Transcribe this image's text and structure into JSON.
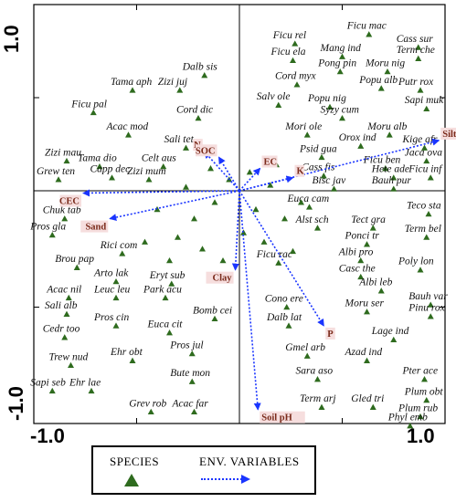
{
  "chart_data": {
    "type": "scatter",
    "xlim": [
      -1.0,
      1.0
    ],
    "ylim": [
      -1.0,
      1.0
    ],
    "ticks": {
      "x": [
        "-1.0",
        "1.0"
      ],
      "y": [
        "1.0",
        "-1.0"
      ]
    },
    "legend": {
      "species_label": "SPECIES",
      "env_label": "ENV. VARIABLES",
      "placement": "bottom"
    },
    "colors": {
      "species": "#2e6b1e",
      "env_arrow": "#1a35ff",
      "env_label": "#7a2a1a"
    },
    "env_variables": [
      {
        "name": "Silt",
        "x": 0.97,
        "y": 0.27
      },
      {
        "name": "CEC",
        "x": -0.76,
        "y": -0.01
      },
      {
        "name": "Sand",
        "x": -0.63,
        "y": -0.12
      },
      {
        "name": "N",
        "x": -0.17,
        "y": 0.21
      },
      {
        "name": "SOC",
        "x": -0.1,
        "y": 0.18
      },
      {
        "name": "EC",
        "x": 0.1,
        "y": 0.12
      },
      {
        "name": "K",
        "x": 0.26,
        "y": 0.07
      },
      {
        "name": "Clay",
        "x": -0.02,
        "y": -0.34
      },
      {
        "name": "P",
        "x": 0.41,
        "y": -0.58
      },
      {
        "name": "Soil pH",
        "x": 0.09,
        "y": -0.94
      }
    ],
    "species": [
      {
        "name": "Ficu rel",
        "x": 0.27,
        "y": 0.79
      },
      {
        "name": "Ficu mac",
        "x": 0.63,
        "y": 0.84
      },
      {
        "name": "Cass sur",
        "x": 0.87,
        "y": 0.77
      },
      {
        "name": "Ficu ela",
        "x": 0.26,
        "y": 0.7
      },
      {
        "name": "Mang ind",
        "x": 0.5,
        "y": 0.72
      },
      {
        "name": "Term che",
        "x": 0.87,
        "y": 0.71
      },
      {
        "name": "Pong pin",
        "x": 0.49,
        "y": 0.64
      },
      {
        "name": "Moru nig",
        "x": 0.72,
        "y": 0.64
      },
      {
        "name": "Dalb sis",
        "x": -0.17,
        "y": 0.62
      },
      {
        "name": "Cord myx",
        "x": 0.28,
        "y": 0.57
      },
      {
        "name": "Tama aph",
        "x": -0.52,
        "y": 0.54
      },
      {
        "name": "Zizi juj",
        "x": -0.29,
        "y": 0.54
      },
      {
        "name": "Popu alb",
        "x": 0.69,
        "y": 0.55
      },
      {
        "name": "Putr rox",
        "x": 0.88,
        "y": 0.54
      },
      {
        "name": "Popu nig",
        "x": 0.44,
        "y": 0.45
      },
      {
        "name": "Salv ole",
        "x": 0.19,
        "y": 0.46
      },
      {
        "name": "Sapi muk",
        "x": 0.91,
        "y": 0.44
      },
      {
        "name": "Ficu pal",
        "x": -0.71,
        "y": 0.42
      },
      {
        "name": "Syzy cum",
        "x": 0.5,
        "y": 0.39
      },
      {
        "name": "Cord dic",
        "x": -0.2,
        "y": 0.39
      },
      {
        "name": "Moru alb",
        "x": 0.73,
        "y": 0.3
      },
      {
        "name": "Mori ole",
        "x": 0.33,
        "y": 0.3
      },
      {
        "name": "Acac mod",
        "x": -0.54,
        "y": 0.3
      },
      {
        "name": "Sali tet",
        "x": -0.26,
        "y": 0.23
      },
      {
        "name": "Orox ind",
        "x": 0.59,
        "y": 0.24
      },
      {
        "name": "Kige afr",
        "x": 0.9,
        "y": 0.23
      },
      {
        "name": "Psid gua",
        "x": 0.4,
        "y": 0.18
      },
      {
        "name": "Zizi mau",
        "x": -0.84,
        "y": 0.16
      },
      {
        "name": "Celt aus",
        "x": -0.37,
        "y": 0.13
      },
      {
        "name": "Jaca ova",
        "x": 0.91,
        "y": 0.16
      },
      {
        "name": "Tama dio",
        "x": -0.68,
        "y": 0.13
      },
      {
        "name": "Ficu ben",
        "x": 0.71,
        "y": 0.12
      },
      {
        "name": "Grew ten",
        "x": -0.88,
        "y": 0.06
      },
      {
        "name": "Capp dec",
        "x": -0.62,
        "y": 0.07
      },
      {
        "name": "Zizi mum",
        "x": -0.44,
        "y": 0.06
      },
      {
        "name": "Cass fis",
        "x": 0.41,
        "y": 0.08
      },
      {
        "name": "Hete ade",
        "x": 0.75,
        "y": 0.07
      },
      {
        "name": "Ficu inf",
        "x": 0.93,
        "y": 0.07
      },
      {
        "name": "Bisc jav",
        "x": 0.46,
        "y": 0.01
      },
      {
        "name": "Bauh pur",
        "x": 0.75,
        "y": 0.01
      },
      {
        "name": "Chuk tab",
        "x": -0.85,
        "y": -0.12
      },
      {
        "name": "Teco sta",
        "x": 0.92,
        "y": -0.1
      },
      {
        "name": "Euca cam",
        "x": 0.34,
        "y": -0.07
      },
      {
        "name": "Tect gra",
        "x": 0.65,
        "y": -0.16
      },
      {
        "name": "Pros gla",
        "x": -0.91,
        "y": -0.19
      },
      {
        "name": "Alst sch",
        "x": 0.38,
        "y": -0.16
      },
      {
        "name": "Term bel",
        "x": 0.91,
        "y": -0.2
      },
      {
        "name": "Rici com",
        "x": -0.57,
        "y": -0.27
      },
      {
        "name": "Ponci tr",
        "x": 0.62,
        "y": -0.23
      },
      {
        "name": "Brou pap",
        "x": -0.79,
        "y": -0.33
      },
      {
        "name": "Albi pro",
        "x": 0.59,
        "y": -0.3
      },
      {
        "name": "Ficu rac",
        "x": 0.19,
        "y": -0.31
      },
      {
        "name": "Arto lak",
        "x": -0.6,
        "y": -0.39
      },
      {
        "name": "Poly lon",
        "x": 0.88,
        "y": -0.34
      },
      {
        "name": "Eryt sub",
        "x": -0.33,
        "y": -0.4
      },
      {
        "name": "Casc the",
        "x": 0.59,
        "y": -0.37
      },
      {
        "name": "Acac nil",
        "x": -0.83,
        "y": -0.46
      },
      {
        "name": "Leuc leu",
        "x": -0.6,
        "y": -0.46
      },
      {
        "name": "Park acu",
        "x": -0.36,
        "y": -0.46
      },
      {
        "name": "Albi leb",
        "x": 0.69,
        "y": -0.43
      },
      {
        "name": "Cono ere",
        "x": 0.23,
        "y": -0.5
      },
      {
        "name": "Bauh var",
        "x": 0.93,
        "y": -0.49
      },
      {
        "name": "Sali alb",
        "x": -0.84,
        "y": -0.53
      },
      {
        "name": "Moru ser",
        "x": 0.62,
        "y": -0.52
      },
      {
        "name": "Bomb cei",
        "x": -0.12,
        "y": -0.55
      },
      {
        "name": "Pinu rox",
        "x": 0.93,
        "y": -0.54
      },
      {
        "name": "Pros cin",
        "x": -0.6,
        "y": -0.58
      },
      {
        "name": "Dalb lat",
        "x": 0.24,
        "y": -0.58
      },
      {
        "name": "Euca cit",
        "x": -0.34,
        "y": -0.61
      },
      {
        "name": "Cedr too",
        "x": -0.85,
        "y": -0.63
      },
      {
        "name": "Lage ind",
        "x": 0.75,
        "y": -0.64
      },
      {
        "name": "Pros jul",
        "x": -0.23,
        "y": -0.7
      },
      {
        "name": "Gmel arb",
        "x": 0.33,
        "y": -0.71
      },
      {
        "name": "Ehr obt",
        "x": -0.52,
        "y": -0.73
      },
      {
        "name": "Trew nud",
        "x": -0.82,
        "y": -0.75
      },
      {
        "name": "Azad ind",
        "x": 0.62,
        "y": -0.73
      },
      {
        "name": "Sara aso",
        "x": 0.38,
        "y": -0.81
      },
      {
        "name": "Bute mon",
        "x": -0.23,
        "y": -0.82
      },
      {
        "name": "Pter ace",
        "x": 0.9,
        "y": -0.81
      },
      {
        "name": "Sapi seb",
        "x": -0.91,
        "y": -0.86
      },
      {
        "name": "Ehr lae",
        "x": -0.72,
        "y": -0.86
      },
      {
        "name": "Term arj",
        "x": 0.4,
        "y": -0.93
      },
      {
        "name": "Gled tri",
        "x": 0.65,
        "y": -0.93
      },
      {
        "name": "Plum obt",
        "x": 0.91,
        "y": -0.9
      },
      {
        "name": "Grev rob",
        "x": -0.43,
        "y": -0.95
      },
      {
        "name": "Acac far",
        "x": -0.22,
        "y": -0.95
      },
      {
        "name": "Plum rub",
        "x": 0.88,
        "y": -0.97
      },
      {
        "name": "Phyl emb",
        "x": 0.83,
        "y": -1.01
      }
    ]
  }
}
